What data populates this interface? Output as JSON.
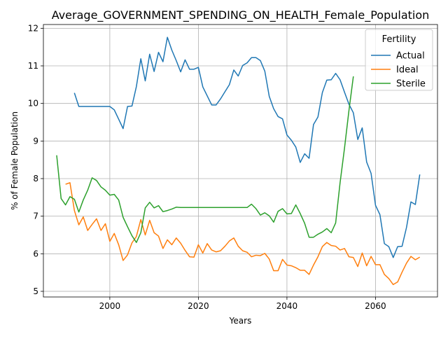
{
  "chart_data": {
    "type": "line",
    "title": "Average_GOVERNMENT_SPENDING_ON_HEALTH_Female_Population",
    "xlabel": "Years",
    "ylabel": "% of Female Population",
    "xlim": [
      1985,
      2074
    ],
    "ylim": [
      4.85,
      12.1
    ],
    "xticks": [
      2000,
      2020,
      2040,
      2060
    ],
    "yticks": [
      5,
      6,
      7,
      8,
      9,
      10,
      11,
      12
    ],
    "grid": true,
    "legend": {
      "title": "Fertility",
      "position": "top-right"
    },
    "series": [
      {
        "name": "Actual",
        "color": "#1f77b4",
        "x": [
          1992,
          1993,
          1994,
          1995,
          1996,
          1997,
          1998,
          1999,
          2000,
          2001,
          2002,
          2003,
          2004,
          2005,
          2006,
          2007,
          2008,
          2009,
          2010,
          2011,
          2012,
          2013,
          2014,
          2015,
          2016,
          2017,
          2018,
          2019,
          2020,
          2021,
          2022,
          2023,
          2024,
          2025,
          2026,
          2027,
          2028,
          2029,
          2030,
          2031,
          2032,
          2033,
          2034,
          2035,
          2036,
          2037,
          2038,
          2039,
          2040,
          2041,
          2042,
          2043,
          2044,
          2045,
          2046,
          2047,
          2048,
          2049,
          2050,
          2051,
          2052,
          2053,
          2054,
          2055,
          2056,
          2057,
          2058,
          2059,
          2060,
          2061,
          2062,
          2063,
          2064,
          2065,
          2066,
          2067,
          2068,
          2069,
          2070
        ],
        "values": [
          10.28,
          9.92,
          9.92,
          9.92,
          9.92,
          9.92,
          9.92,
          9.92,
          9.92,
          9.83,
          9.58,
          9.33,
          9.92,
          9.93,
          10.45,
          11.19,
          10.6,
          11.31,
          10.85,
          11.36,
          11.11,
          11.76,
          11.42,
          11.14,
          10.84,
          11.16,
          10.91,
          10.91,
          10.96,
          10.44,
          10.2,
          9.96,
          9.96,
          10.12,
          10.31,
          10.5,
          10.89,
          10.73,
          11.01,
          11.08,
          11.22,
          11.22,
          11.14,
          10.86,
          10.19,
          9.86,
          9.65,
          9.59,
          9.16,
          9.02,
          8.84,
          8.43,
          8.66,
          8.54,
          9.44,
          9.64,
          10.29,
          10.62,
          10.63,
          10.8,
          10.63,
          10.3,
          9.98,
          9.75,
          9.04,
          9.35,
          8.44,
          8.14,
          7.29,
          7.04,
          6.27,
          6.19,
          5.9,
          6.19,
          6.2,
          6.7,
          7.38,
          7.31,
          8.11
        ]
      },
      {
        "name": "Ideal",
        "color": "#ff7f0e",
        "x": [
          1990,
          1991,
          1992,
          1993,
          1994,
          1995,
          1996,
          1997,
          1998,
          1999,
          2000,
          2001,
          2002,
          2003,
          2004,
          2005,
          2006,
          2007,
          2008,
          2009,
          2010,
          2011,
          2012,
          2013,
          2014,
          2015,
          2016,
          2017,
          2018,
          2019,
          2020,
          2021,
          2022,
          2023,
          2024,
          2025,
          2026,
          2027,
          2028,
          2029,
          2030,
          2031,
          2032,
          2033,
          2034,
          2035,
          2036,
          2037,
          2038,
          2039,
          2040,
          2041,
          2042,
          2043,
          2044,
          2045,
          2046,
          2047,
          2048,
          2049,
          2050,
          2051,
          2052,
          2053,
          2054,
          2055,
          2056,
          2057,
          2058,
          2059,
          2060,
          2061,
          2062,
          2063,
          2064,
          2065,
          2066,
          2067,
          2068,
          2069,
          2070
        ],
        "values": [
          7.85,
          7.89,
          7.15,
          6.77,
          6.98,
          6.62,
          6.78,
          6.93,
          6.62,
          6.8,
          6.33,
          6.54,
          6.24,
          5.82,
          5.97,
          6.29,
          6.46,
          6.91,
          6.5,
          6.89,
          6.56,
          6.47,
          6.14,
          6.37,
          6.24,
          6.42,
          6.28,
          6.09,
          5.92,
          5.91,
          6.24,
          6.02,
          6.27,
          6.1,
          6.05,
          6.08,
          6.2,
          6.34,
          6.42,
          6.2,
          6.08,
          6.04,
          5.92,
          5.96,
          5.95,
          6.01,
          5.86,
          5.55,
          5.55,
          5.85,
          5.7,
          5.68,
          5.63,
          5.56,
          5.56,
          5.45,
          5.7,
          5.92,
          6.19,
          6.3,
          6.22,
          6.2,
          6.1,
          6.14,
          5.92,
          5.9,
          5.66,
          6.02,
          5.68,
          5.93,
          5.71,
          5.71,
          5.45,
          5.34,
          5.18,
          5.25,
          5.51,
          5.75,
          5.93,
          5.84,
          5.91
        ]
      },
      {
        "name": "Sterile",
        "color": "#2ca02c",
        "x": [
          1988,
          1989,
          1990,
          1991,
          1992,
          1993,
          1994,
          1995,
          1996,
          1997,
          1998,
          1999,
          2000,
          2001,
          2002,
          2003,
          2004,
          2005,
          2006,
          2007,
          2008,
          2009,
          2010,
          2011,
          2012,
          2013,
          2014,
          2015,
          2016,
          2017,
          2018,
          2019,
          2020,
          2021,
          2022,
          2023,
          2024,
          2025,
          2026,
          2027,
          2028,
          2029,
          2030,
          2031,
          2032,
          2033,
          2034,
          2035,
          2036,
          2037,
          2038,
          2039,
          2040,
          2041,
          2042,
          2043,
          2044,
          2045,
          2046,
          2047,
          2048,
          2049,
          2050,
          2051,
          2052,
          2053,
          2054,
          2055
        ],
        "values": [
          8.62,
          7.47,
          7.3,
          7.52,
          7.45,
          7.11,
          7.43,
          7.69,
          8.02,
          7.95,
          7.78,
          7.69,
          7.56,
          7.58,
          7.43,
          6.97,
          6.72,
          6.48,
          6.3,
          6.56,
          7.22,
          7.37,
          7.22,
          7.28,
          7.12,
          7.15,
          7.19,
          7.24,
          7.23,
          7.23,
          7.23,
          7.23,
          7.23,
          7.23,
          7.23,
          7.23,
          7.23,
          7.23,
          7.23,
          7.23,
          7.23,
          7.23,
          7.23,
          7.23,
          7.32,
          7.2,
          7.03,
          7.09,
          7.01,
          6.84,
          7.13,
          7.2,
          7.06,
          7.07,
          7.3,
          7.07,
          6.81,
          6.44,
          6.44,
          6.52,
          6.58,
          6.67,
          6.56,
          6.82,
          7.89,
          8.81,
          9.81,
          10.72
        ]
      }
    ]
  }
}
